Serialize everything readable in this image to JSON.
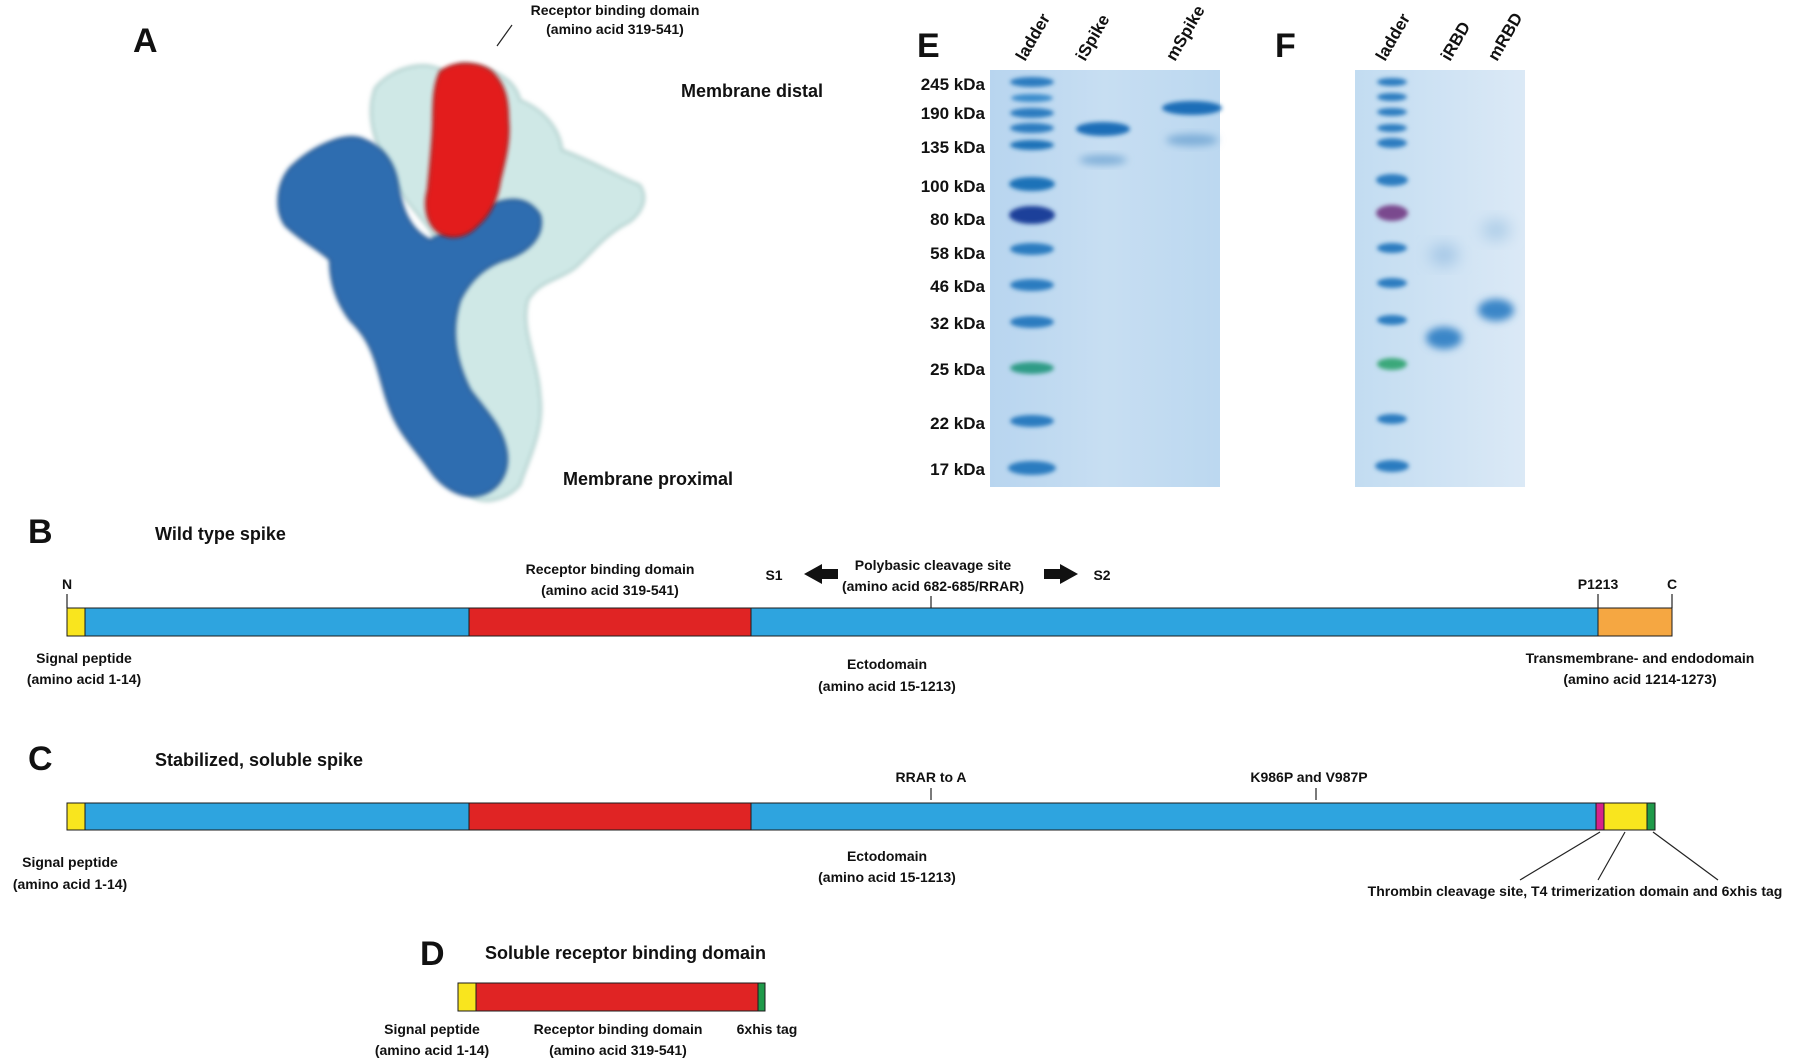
{
  "colors": {
    "signal_peptide": "#f9e51e",
    "ectodomain": "#2ea4df",
    "rbd": "#e02424",
    "transmembrane": "#f5a742",
    "thrombin": "#d6238a",
    "his_tag": "#1f9a4a",
    "structure_light": "#cfe8e6",
    "structure_dark": "#2f6db0",
    "structure_red": "#e31a1a",
    "gel_background": "#bcd8f0"
  },
  "panel_a": {
    "letter": "A",
    "rbd_label_line1": "Receptor binding domain",
    "rbd_label_line2": "(amino acid 319-541)",
    "membrane_distal": "Membrane distal",
    "membrane_proximal": "Membrane proximal"
  },
  "panel_b": {
    "letter": "B",
    "title": "Wild type spike",
    "n_label": "N",
    "c_label": "C",
    "p1213": "P1213",
    "s1": "S1",
    "s2": "S2",
    "cleavage_line1": "Polybasic cleavage site",
    "cleavage_line2": "(amino acid 682-685/RRAR)",
    "rbd_line1": "Receptor binding domain",
    "rbd_line2": "(amino acid 319-541)",
    "signal_line1": "Signal peptide",
    "signal_line2": "(amino acid 1-14)",
    "ecto_line1": "Ectodomain",
    "ecto_line2": "(amino acid 15-1213)",
    "tm_line1": "Transmembrane- and endodomain",
    "tm_line2": "(amino acid 1214-1273)"
  },
  "panel_c": {
    "letter": "C",
    "title": "Stabilized, soluble spike",
    "rrar": "RRAR to A",
    "k986p": "K986P and V987P",
    "signal_line1": "Signal peptide",
    "signal_line2": "(amino acid 1-14)",
    "ecto_line1": "Ectodomain",
    "ecto_line2": "(amino acid 15-1213)",
    "thrombin_label": "Thrombin cleavage site, T4 trimerization domain and 6xhis tag"
  },
  "panel_d": {
    "letter": "D",
    "title": "Soluble receptor binding domain",
    "signal_line1": "Signal peptide",
    "signal_line2": "(amino acid 1-14)",
    "rbd_line1": "Receptor binding domain",
    "rbd_line2": "(amino acid 319-541)",
    "his_label": "6xhis tag"
  },
  "panel_e": {
    "letter": "E",
    "lanes": [
      "ladder",
      "iSpike",
      "mSpike"
    ],
    "markers": [
      "245 kDa",
      "190 kDa",
      "135 kDa",
      "100 kDa",
      "80 kDa",
      "58 kDa",
      "46 kDa",
      "32 kDa",
      "25 kDa",
      "22 kDa",
      "17 kDa"
    ]
  },
  "panel_f": {
    "letter": "F",
    "lanes": [
      "ladder",
      "iRBD",
      "mRBD"
    ]
  }
}
